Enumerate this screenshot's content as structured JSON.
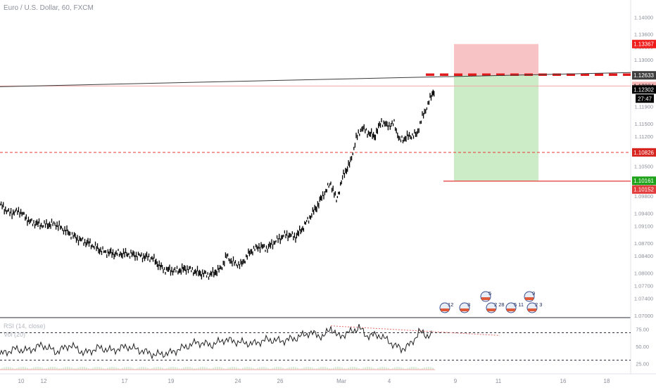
{
  "header": {
    "symbol_title": "Euro / U.S. Dollar, 60, FXCM"
  },
  "indicator": {
    "rsi_label": "RSI (14, close)",
    "vol_label": "Vol (20)"
  },
  "colors": {
    "candle": "#000000",
    "accent_red": "#e53935",
    "price_green": "#21a320",
    "stop_fill": "#f7b9bb",
    "target_fill": "#c6eac1",
    "trend": "#3b3b3b"
  },
  "chart_data": [
    {
      "type": "line",
      "title": "",
      "ylim": [
        1.0695,
        1.144
      ],
      "y_ticks": [
        "1.14000",
        "1.13600",
        "1.13300",
        "1.13000",
        "1.12600",
        "1.12300",
        "1.11900",
        "1.11500",
        "1.11200",
        "1.10800",
        "1.10500",
        "1.10100",
        "1.09800",
        "1.09400",
        "1.09100",
        "1.08700",
        "1.08400",
        "1.08000",
        "1.07700",
        "1.07400",
        "1.07000"
      ],
      "x_ticks": [
        "10",
        "12",
        "17",
        "19",
        "24",
        "26",
        "Mar",
        "4",
        "9",
        "11",
        "16",
        "18"
      ],
      "price_path": [
        [
          0,
          1.096
        ],
        [
          14,
          1.094
        ],
        [
          28,
          1.0945
        ],
        [
          42,
          1.092
        ],
        [
          60,
          1.0912
        ],
        [
          78,
          1.0915
        ],
        [
          92,
          1.09
        ],
        [
          110,
          1.088
        ],
        [
          128,
          1.0868
        ],
        [
          146,
          1.085
        ],
        [
          162,
          1.0845
        ],
        [
          180,
          1.0845
        ],
        [
          198,
          1.084
        ],
        [
          216,
          1.0835
        ],
        [
          232,
          1.0808
        ],
        [
          250,
          1.0805
        ],
        [
          266,
          1.081
        ],
        [
          282,
          1.08
        ],
        [
          298,
          1.0795
        ],
        [
          314,
          1.081
        ],
        [
          322,
          1.084
        ],
        [
          330,
          1.0825
        ],
        [
          342,
          1.0818
        ],
        [
          356,
          1.085
        ],
        [
          368,
          1.0862
        ],
        [
          380,
          1.0858
        ],
        [
          392,
          1.0875
        ],
        [
          406,
          1.089
        ],
        [
          420,
          1.0885
        ],
        [
          430,
          1.0905
        ],
        [
          440,
          1.093
        ],
        [
          450,
          1.0955
        ],
        [
          460,
          1.0985
        ],
        [
          470,
          1.101
        ],
        [
          478,
          1.097
        ],
        [
          488,
          1.103
        ],
        [
          498,
          1.106
        ],
        [
          506,
          1.1115
        ],
        [
          514,
          1.114
        ],
        [
          522,
          1.113
        ],
        [
          532,
          1.112
        ],
        [
          542,
          1.1155
        ],
        [
          550,
          1.1145
        ],
        [
          560,
          1.115
        ],
        [
          568,
          1.111
        ],
        [
          580,
          1.112
        ],
        [
          592,
          1.1125
        ],
        [
          600,
          1.1165
        ],
        [
          608,
          1.1195
        ],
        [
          614,
          1.122
        ],
        [
          618,
          1.1232
        ]
      ],
      "last_price": 1.12302,
      "countdown": "27:47",
      "price_labels": [
        {
          "price": 1.13367,
          "text": "1.13367",
          "bg": "#f01b1b",
          "fg": "#ffffff"
        },
        {
          "price": 1.12633,
          "text": "1.12633",
          "bg": "#3e3e3e",
          "fg": "#ffffff"
        },
        {
          "price": 1.12384,
          "text": "1.12384",
          "bg": "#f4b5b5",
          "fg": "#222222"
        },
        {
          "price": 1.12302,
          "text": "1.12302",
          "bg": "#000000",
          "fg": "#ffffff"
        },
        {
          "price": 1.10826,
          "text": "1.10826",
          "bg": "#d8241f",
          "fg": "#ffffff"
        },
        {
          "price": 1.10161,
          "text": "1.10161",
          "bg": "#1fa31a",
          "fg": "#ffffff"
        },
        {
          "price": 1.10152,
          "text": "1.10152",
          "bg": "#e33b3b",
          "fg": "#ffffff"
        }
      ],
      "levels": [
        {
          "name": "entry-dashed",
          "price": 1.12633,
          "style": "dash-heavy",
          "color": "#e11b1b"
        },
        {
          "name": "thin-red",
          "price": 1.12384,
          "style": "solid-thin",
          "color": "#f2a7a7"
        },
        {
          "name": "support",
          "price": 1.10826,
          "style": "dashed",
          "color": "#e53935"
        },
        {
          "name": "target",
          "price": 1.10152,
          "style": "solid",
          "color": "#e53935"
        }
      ],
      "position": {
        "entry": 1.12633,
        "stop": 1.13367,
        "target": 1.10161
      },
      "trendline": [
        [
          0,
          1.12384
        ],
        [
          896,
          1.12633
        ]
      ],
      "events": [
        {
          "label": "12",
          "flags": 2
        },
        {
          "label": "3",
          "flags": 2
        },
        {
          "label": "5",
          "flags": 2
        },
        {
          "label": "2 28",
          "flags": 2
        },
        {
          "label": "5 11",
          "flags": 2
        },
        {
          "label": "9",
          "flags": 1
        },
        {
          "label": "2 3",
          "flags": 2
        }
      ]
    },
    {
      "type": "line",
      "title": "RSI (14, close)",
      "ylim": [
        10,
        92
      ],
      "y_ticks": [
        "75.00",
        "50.00",
        "25.00"
      ],
      "bands": [
        70,
        30
      ],
      "rsi_path": [
        [
          0,
          38
        ],
        [
          20,
          46
        ],
        [
          40,
          44
        ],
        [
          60,
          52
        ],
        [
          80,
          42
        ],
        [
          100,
          52
        ],
        [
          120,
          40
        ],
        [
          140,
          48
        ],
        [
          160,
          44
        ],
        [
          180,
          50
        ],
        [
          200,
          44
        ],
        [
          220,
          38
        ],
        [
          240,
          40
        ],
        [
          260,
          48
        ],
        [
          280,
          56
        ],
        [
          300,
          52
        ],
        [
          320,
          60
        ],
        [
          340,
          56
        ],
        [
          360,
          54
        ],
        [
          380,
          60
        ],
        [
          400,
          58
        ],
        [
          420,
          62
        ],
        [
          440,
          70
        ],
        [
          460,
          64
        ],
        [
          470,
          78
        ],
        [
          480,
          64
        ],
        [
          500,
          72
        ],
        [
          510,
          78
        ],
        [
          520,
          66
        ],
        [
          540,
          66
        ],
        [
          560,
          52
        ],
        [
          570,
          46
        ],
        [
          585,
          54
        ],
        [
          595,
          72
        ],
        [
          605,
          66
        ],
        [
          615,
          68
        ]
      ]
    }
  ]
}
